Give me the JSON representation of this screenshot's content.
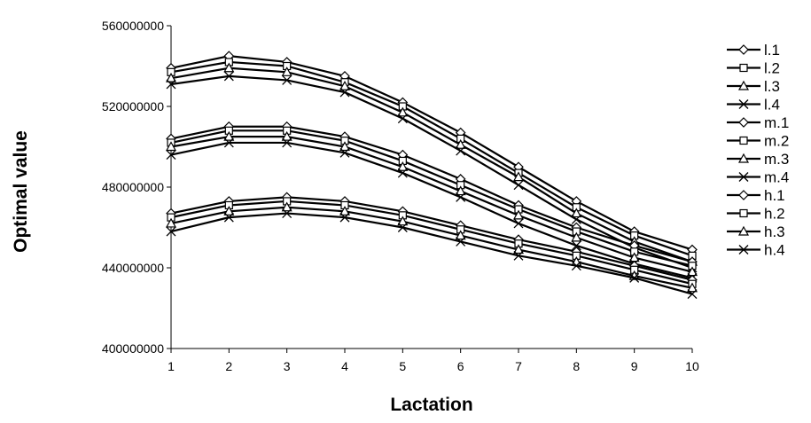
{
  "chart_data": {
    "type": "line",
    "title": "",
    "xlabel": "Lactation",
    "ylabel": "Optimal value",
    "x": [
      1,
      2,
      3,
      4,
      5,
      6,
      7,
      8,
      9,
      10
    ],
    "xlim": [
      1,
      10
    ],
    "ylim": [
      400000000,
      560000000
    ],
    "yticks": [
      "400000000",
      "440000000",
      "480000000",
      "520000000",
      "560000000"
    ],
    "xticks": [
      "1",
      "2",
      "3",
      "4",
      "5",
      "6",
      "7",
      "8",
      "9",
      "10"
    ],
    "grid": false,
    "legend_position": "right",
    "line_color": "#000000",
    "series": [
      {
        "name": "l.1",
        "marker": "diamond-open",
        "values": [
          539000000,
          545000000,
          542000000,
          535000000,
          522000000,
          507000000,
          490000000,
          473000000,
          458000000,
          449000000
        ]
      },
      {
        "name": "l.2",
        "marker": "square-open",
        "values": [
          537000000,
          542000000,
          540000000,
          532000000,
          520000000,
          504000000,
          487000000,
          470000000,
          456000000,
          446000000
        ]
      },
      {
        "name": "l.3",
        "marker": "triangle-open",
        "values": [
          534000000,
          539000000,
          537000000,
          530000000,
          517000000,
          501000000,
          485000000,
          467000000,
          453000000,
          443000000
        ]
      },
      {
        "name": "l.4",
        "marker": "x",
        "values": [
          531000000,
          535000000,
          533000000,
          527000000,
          514000000,
          498000000,
          481000000,
          464000000,
          450000000,
          440000000
        ]
      },
      {
        "name": "m.1",
        "marker": "diamond-open",
        "values": [
          504000000,
          510000000,
          510000000,
          505000000,
          496000000,
          484000000,
          471000000,
          460000000,
          451000000,
          443000000
        ]
      },
      {
        "name": "m.2",
        "marker": "square-open",
        "values": [
          502000000,
          508000000,
          508000000,
          503000000,
          493000000,
          481000000,
          469000000,
          458000000,
          448000000,
          441000000
        ]
      },
      {
        "name": "m.3",
        "marker": "triangle-open",
        "values": [
          500000000,
          505000000,
          505000000,
          500000000,
          490000000,
          478000000,
          466000000,
          455000000,
          445000000,
          438000000
        ]
      },
      {
        "name": "m.4",
        "marker": "x",
        "values": [
          496000000,
          502000000,
          502000000,
          497000000,
          487000000,
          475000000,
          462000000,
          451000000,
          442000000,
          435000000
        ]
      },
      {
        "name": "h.1",
        "marker": "diamond-open",
        "values": [
          467000000,
          473000000,
          475000000,
          473000000,
          468000000,
          461000000,
          454000000,
          448000000,
          441000000,
          434000000
        ]
      },
      {
        "name": "h.2",
        "marker": "square-open",
        "values": [
          465000000,
          471000000,
          473000000,
          471000000,
          466000000,
          459000000,
          452000000,
          446000000,
          439000000,
          432000000
        ]
      },
      {
        "name": "h.3",
        "marker": "triangle-open",
        "values": [
          462000000,
          468000000,
          470000000,
          468000000,
          463000000,
          456000000,
          449000000,
          443000000,
          436000000,
          430000000
        ]
      },
      {
        "name": "h.4",
        "marker": "x",
        "values": [
          458000000,
          465000000,
          467000000,
          465000000,
          460000000,
          453000000,
          446000000,
          441000000,
          435000000,
          427000000
        ]
      }
    ]
  }
}
